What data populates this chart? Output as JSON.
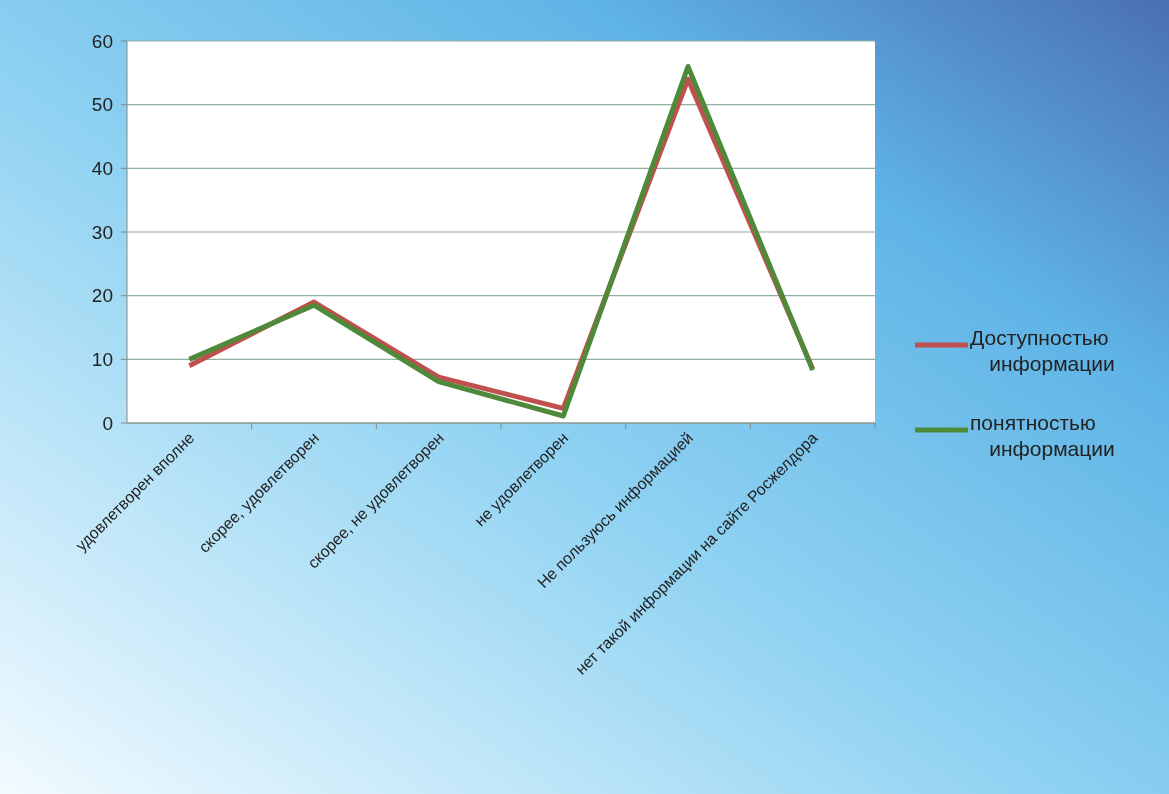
{
  "chart_data": {
    "type": "line",
    "categories": [
      "удовлетворен вполне",
      "скорее, удовлетворен",
      "скорее, не удовлетворен",
      "не удовлетворен",
      "Не пользуюсь информацией",
      "нет такой информации на сайте Росжелдора"
    ],
    "series": [
      {
        "name": "Доступностью информации",
        "color": "#c0504d",
        "values": [
          9,
          19,
          7.2,
          2.3,
          54,
          8.5
        ]
      },
      {
        "name": "понятностью информации",
        "color": "#4f8a3a",
        "values": [
          10,
          18.5,
          6.5,
          1.1,
          56,
          8.3
        ]
      }
    ],
    "ylim": [
      0,
      60
    ],
    "yticks": [
      0,
      10,
      20,
      30,
      40,
      50,
      60
    ],
    "grid": "y",
    "legend": "right",
    "marker": "none",
    "line_style": "solid"
  }
}
